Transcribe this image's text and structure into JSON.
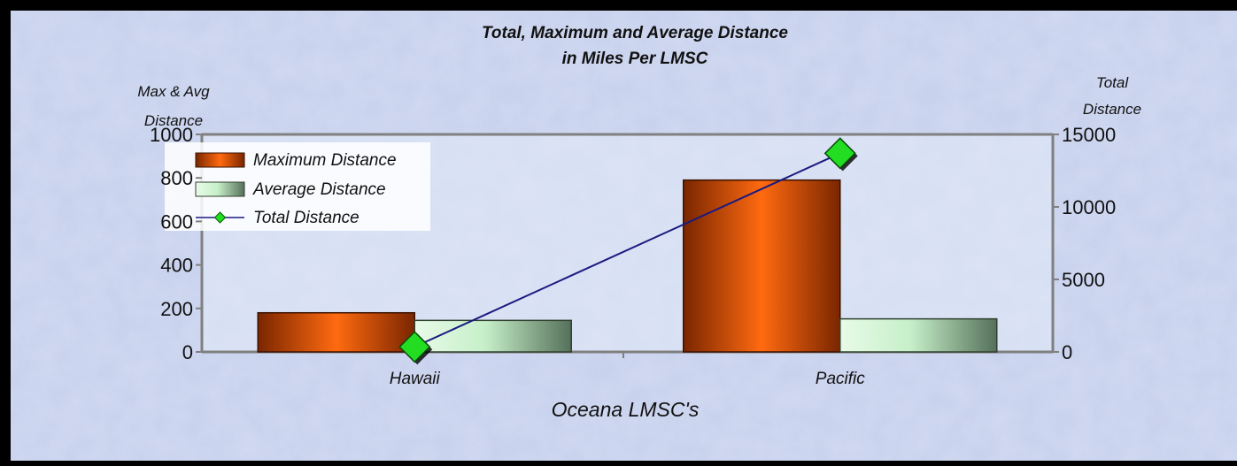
{
  "chart_data": {
    "type": "bar",
    "title": "Total, Maximum and Average Distance",
    "subtitle": "in Miles Per LMSC",
    "xlabel": "Oceana LMSC's",
    "ylabel": "Max & Avg Distance",
    "y2label": "Total Distance",
    "categories": [
      "Hawaii",
      "Pacific"
    ],
    "ylim": [
      0,
      1000
    ],
    "y2lim": [
      0,
      15000
    ],
    "yticks": [
      "0",
      "200",
      "400",
      "600",
      "800",
      "1000"
    ],
    "y2ticks": [
      "0",
      "5000",
      "10000",
      "15000"
    ],
    "legend_position": "top-left",
    "series": [
      {
        "name": "Maximum Distance",
        "type": "bar",
        "axis": "left",
        "values": [
          180,
          790
        ],
        "color": "#e8560a"
      },
      {
        "name": "Average Distance",
        "type": "bar",
        "axis": "left",
        "values": [
          145,
          152
        ],
        "color": "#bfe8c0"
      },
      {
        "name": "Total Distance",
        "type": "line",
        "axis": "right",
        "values": [
          350,
          13700
        ],
        "color": "#1a1a80",
        "marker_color": "#22dd22"
      }
    ]
  }
}
